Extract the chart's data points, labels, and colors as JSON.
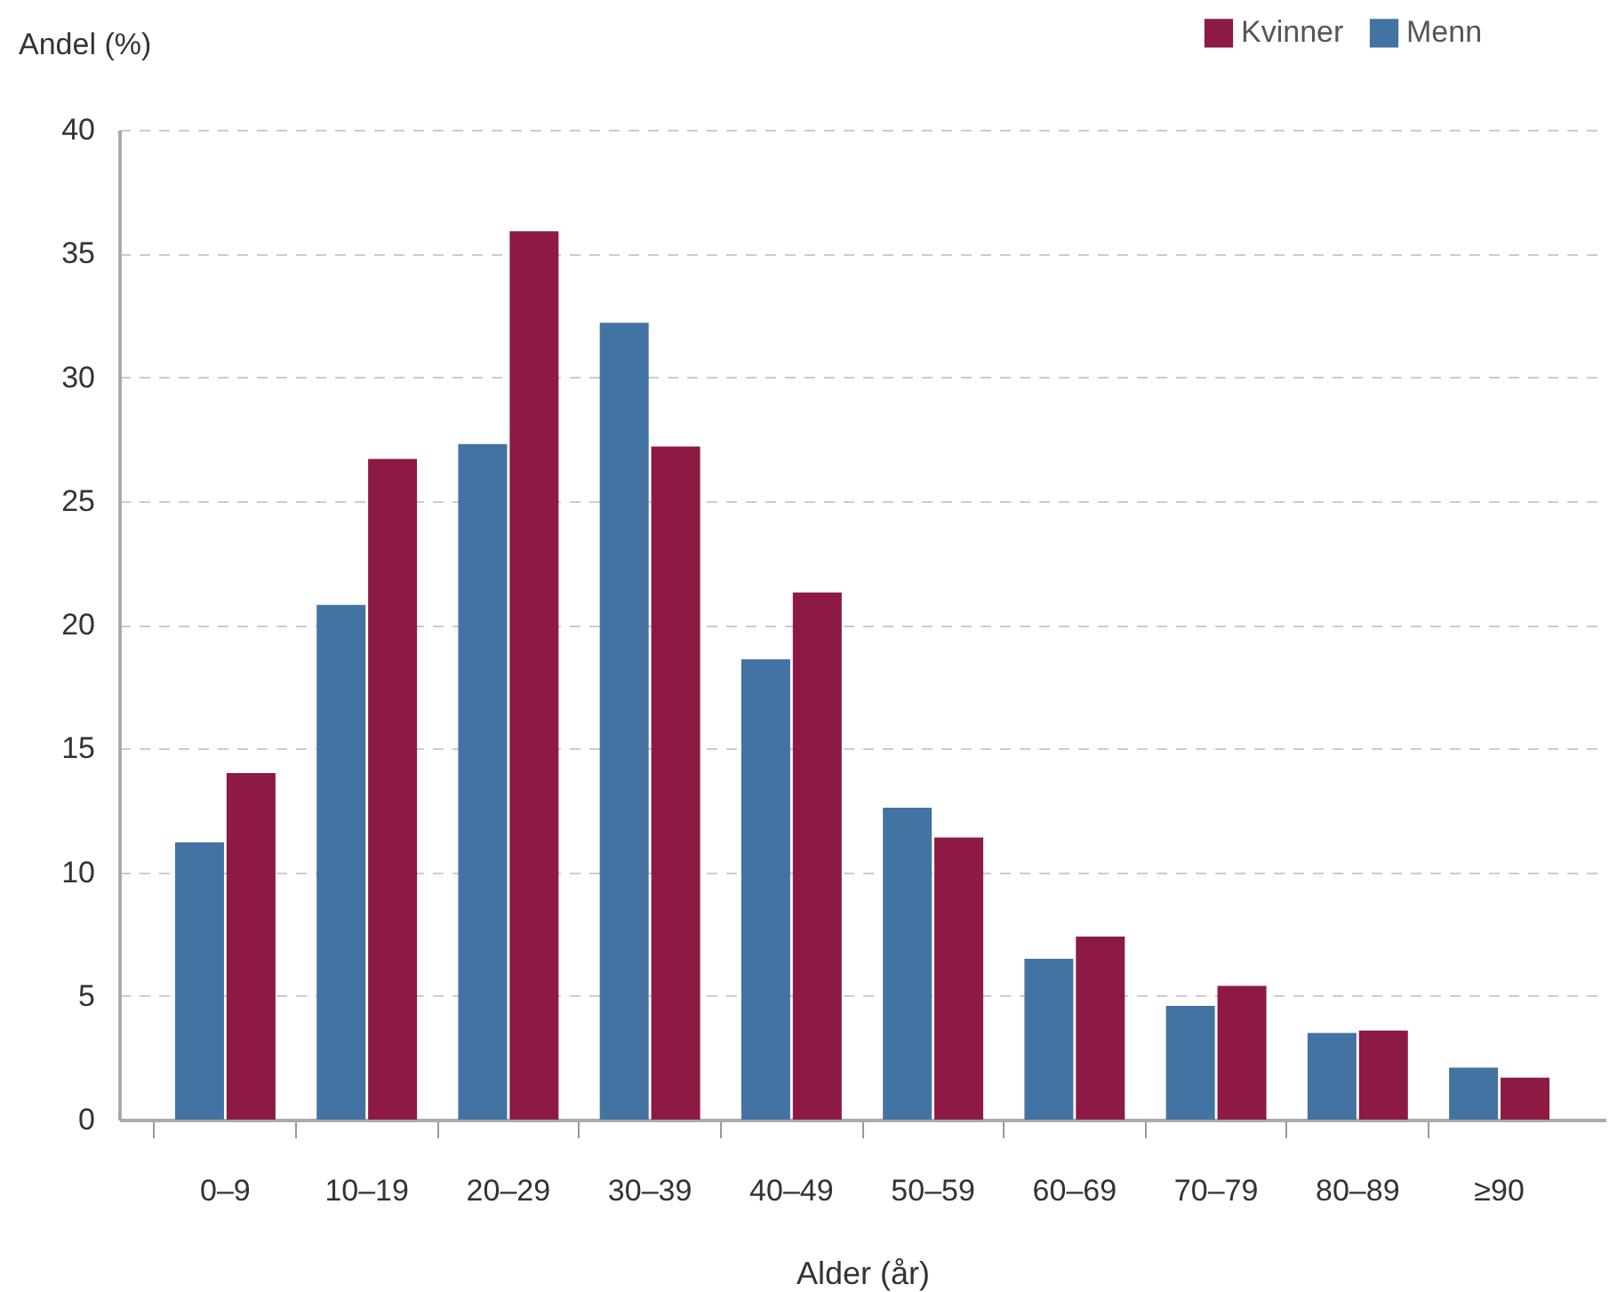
{
  "chart_data": {
    "type": "bar",
    "ylabel": "Andel (%)",
    "xlabel": "Alder (år)",
    "categories": [
      "0–9",
      "10–19",
      "20–29",
      "30–39",
      "40–49",
      "50–59",
      "60–69",
      "70–79",
      "80–89",
      "≥90"
    ],
    "series": [
      {
        "name": "Menn",
        "color": "#4273a3",
        "values": [
          11.2,
          20.8,
          27.3,
          32.2,
          18.6,
          12.6,
          6.5,
          4.6,
          3.5,
          2.1
        ]
      },
      {
        "name": "Kvinner",
        "color": "#8c1a45",
        "values": [
          14.0,
          26.7,
          35.9,
          27.2,
          21.3,
          11.4,
          7.4,
          5.4,
          3.6,
          1.7
        ]
      }
    ],
    "ylim": [
      0,
      40
    ],
    "yticks": [
      0,
      5,
      10,
      15,
      20,
      25,
      30,
      35,
      40
    ],
    "grid": "y",
    "legend": "top right"
  }
}
